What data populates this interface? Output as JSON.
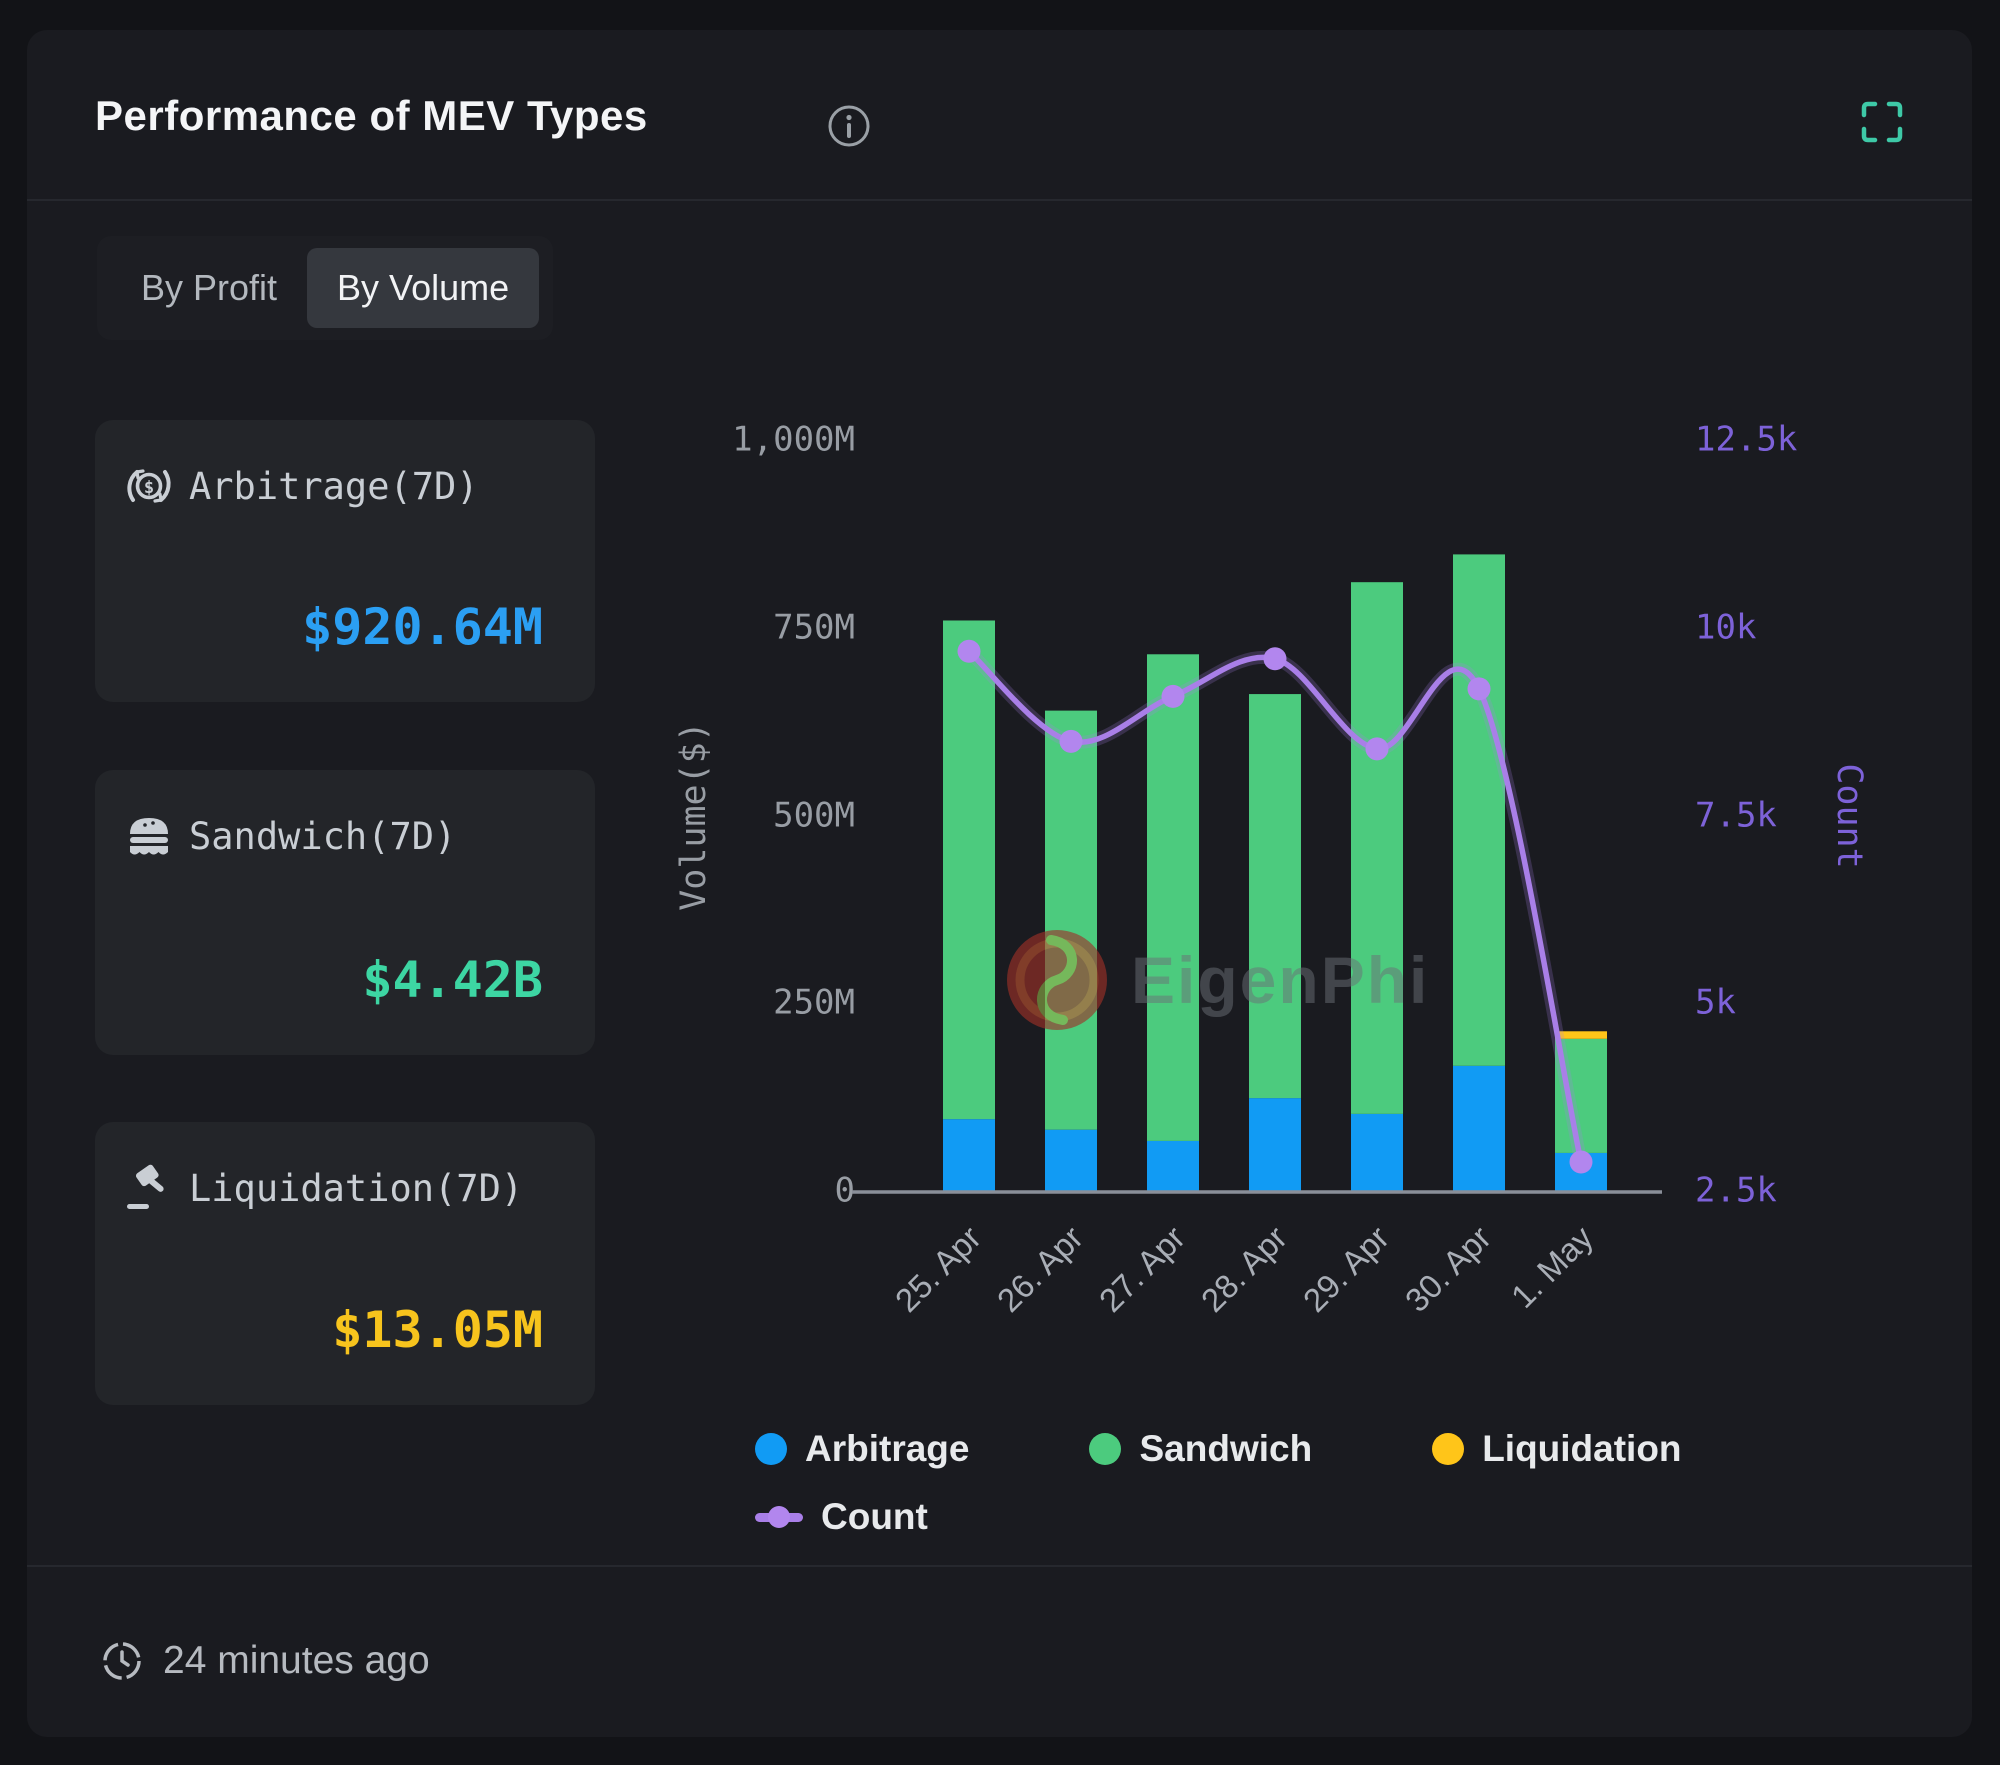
{
  "header": {
    "title": "Performance of MEV Types"
  },
  "tabs": {
    "items": [
      {
        "label": "By Profit",
        "active": false
      },
      {
        "label": "By Volume",
        "active": true
      }
    ]
  },
  "stats": [
    {
      "label": "Arbitrage(7D)",
      "value": "$920.64M",
      "color": "#2b9ff3",
      "icon": "coin-dollar-icon"
    },
    {
      "label": "Sandwich(7D)",
      "value": "$4.42B",
      "color": "#3dd6a3",
      "icon": "sandwich-icon"
    },
    {
      "label": "Liquidation(7D)",
      "value": "$13.05M",
      "color": "#f7c41d",
      "icon": "gavel-icon"
    }
  ],
  "chart_data": {
    "type": "bar",
    "subtype": "stacked-bars-with-line",
    "categories": [
      "25. Apr",
      "26. Apr",
      "27. Apr",
      "28. Apr",
      "29. Apr",
      "30. Apr",
      "1. May"
    ],
    "series": [
      {
        "name": "Arbitrage",
        "type": "bar",
        "color": "#119bf4",
        "axis": "left",
        "values": [
          97,
          83,
          68,
          125,
          104,
          168,
          52
        ]
      },
      {
        "name": "Sandwich",
        "type": "bar",
        "color": "#4ccb7e",
        "axis": "left",
        "values": [
          664,
          558,
          648,
          538,
          708,
          681,
          152
        ]
      },
      {
        "name": "Liquidation",
        "type": "bar",
        "color": "#ffc519",
        "axis": "left",
        "values": [
          0,
          0,
          0,
          0,
          0,
          0,
          10
        ]
      },
      {
        "name": "Count",
        "type": "line",
        "color": "#a97fe8",
        "dot_color": "#b286ee",
        "axis": "right",
        "values": [
          9700,
          8500,
          9100,
          9600,
          8400,
          9200,
          2900
        ]
      }
    ],
    "left_axis": {
      "label": "Volume($)",
      "min": 0,
      "max": 1000,
      "unit": "M",
      "ticks": [
        "1,000M",
        "750M",
        "500M",
        "250M",
        "0"
      ]
    },
    "right_axis": {
      "label": "Count",
      "min": 2500,
      "max": 12500,
      "ticks": [
        "12.5k",
        "10k",
        "7.5k",
        "5k",
        "2.5k"
      ]
    },
    "grid": false,
    "legend_position": "bottom",
    "watermark": "EigenPhi"
  },
  "footer": {
    "updated": "24 minutes ago"
  }
}
